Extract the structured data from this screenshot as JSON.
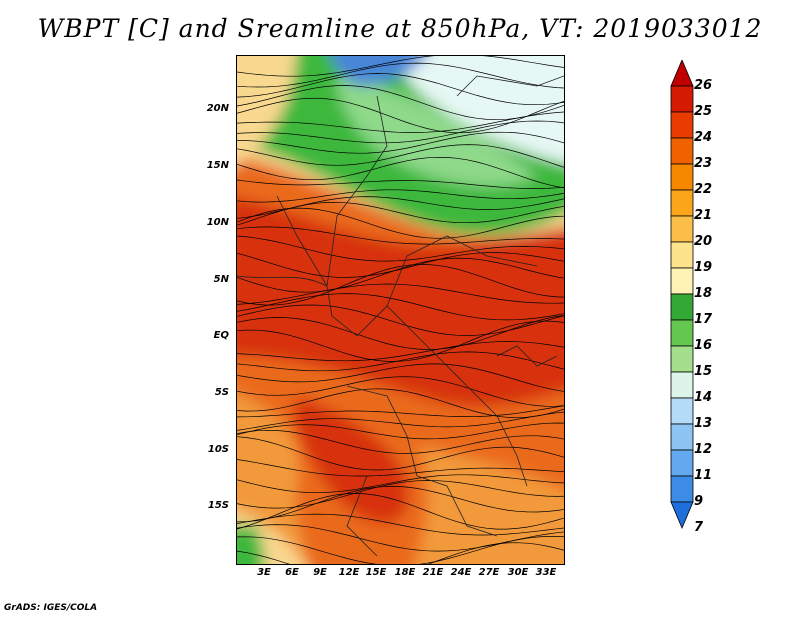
{
  "title": "WBPT [C] and Sreamline at 850hPa, VT: 2019033012",
  "credit": "GrADS: IGES/COLA",
  "lat_ticks": [
    "20N",
    "15N",
    "10N",
    "5N",
    "EQ",
    "5S",
    "10S",
    "15S"
  ],
  "lon_ticks": [
    "3E",
    "6E",
    "9E",
    "12E",
    "15E",
    "18E",
    "21E",
    "24E",
    "27E",
    "30E",
    "33E"
  ],
  "colorbar": {
    "levels": [
      "26",
      "25",
      "24",
      "23",
      "22",
      "21",
      "20",
      "19",
      "18",
      "17",
      "16",
      "15",
      "14",
      "13",
      "12",
      "11",
      "9",
      "7"
    ],
    "colors": [
      "#c00000",
      "#d41a00",
      "#e83c00",
      "#f06200",
      "#f68800",
      "#faa51a",
      "#fcc04a",
      "#fde38c",
      "#fef3b4",
      "#34a834",
      "#64c850",
      "#a4e08c",
      "#ddf5e8",
      "#b4dcf8",
      "#8cc4f4",
      "#64a8ee",
      "#3c8ce6",
      "#1e6edc"
    ]
  },
  "map_colors": {
    "hot": "#d7300a",
    "warm": "#ea6a1c",
    "mid": "#f29a3a",
    "pale": "#f9d890",
    "green": "#3cb83c",
    "lightgreen": "#8ed98a",
    "cyan": "#e6f8f4",
    "blue": "#4a86d8"
  }
}
